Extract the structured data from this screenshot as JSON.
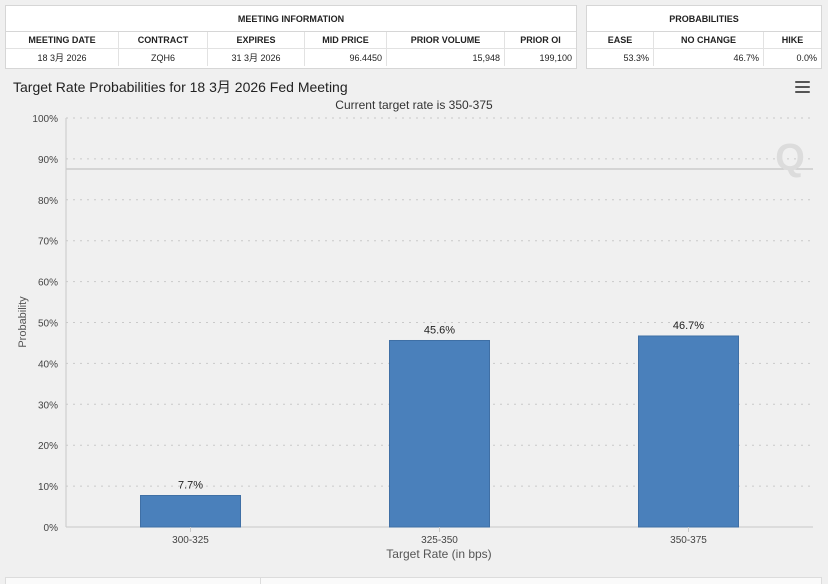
{
  "meeting_info": {
    "title": "MEETING INFORMATION",
    "columns": [
      "MEETING DATE",
      "CONTRACT",
      "EXPIRES",
      "MID PRICE",
      "PRIOR VOLUME",
      "PRIOR OI"
    ],
    "row": [
      "18 3月 2026",
      "ZQH6",
      "31 3月 2026",
      "96.4450",
      "15,948",
      "199,100"
    ]
  },
  "probabilities": {
    "title": "PROBABILITIES",
    "columns": [
      "EASE",
      "NO CHANGE",
      "HIKE"
    ],
    "row": [
      "53.3%",
      "46.7%",
      "0.0%"
    ]
  },
  "chart_title": "Target Rate Probabilities for 18 3月 2026 Fed Meeting",
  "menu_icon": "hamburger-menu-icon",
  "watermark_icon": "q-logo-icon",
  "chart_data": {
    "type": "bar",
    "title": "Target Rate Probabilities for 18 3月 2026 Fed Meeting",
    "subtitle": "Current target rate is 350-375",
    "categories": [
      "300-325",
      "325-350",
      "350-375"
    ],
    "values": [
      7.7,
      45.6,
      46.7
    ],
    "data_labels": [
      "7.7%",
      "45.6%",
      "46.7%"
    ],
    "xlabel": "Target Rate (in bps)",
    "ylabel": "Probability",
    "ylim": [
      0,
      100
    ],
    "yticks": [
      0,
      10,
      20,
      30,
      40,
      50,
      60,
      70,
      80,
      90,
      100
    ],
    "ytick_labels": [
      "0%",
      "10%",
      "20%",
      "30%",
      "40%",
      "50%",
      "60%",
      "70%",
      "80%",
      "90%",
      "100%"
    ],
    "bar_color": "#4a80bb",
    "grid": true
  }
}
